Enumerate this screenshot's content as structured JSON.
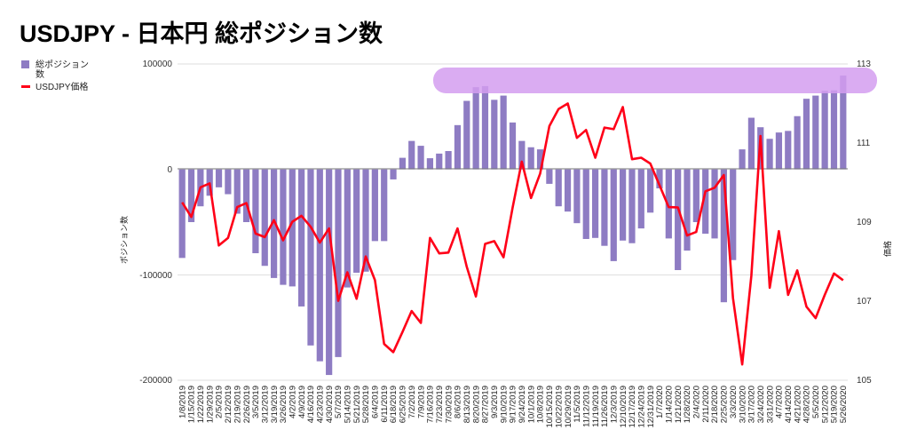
{
  "chart_data": {
    "type": "bar+line",
    "title": "USDJPY - 日本円 総ポジション数",
    "legend": {
      "placement": "top-left",
      "entries": [
        {
          "line1": "総ポジション",
          "line2": "数",
          "label": "総ポジション数",
          "color": "#8e7cc3",
          "kind": "bar"
        },
        {
          "label": "USDJPY価格",
          "color": "#ff0018",
          "kind": "line"
        }
      ]
    },
    "ylabel_left": "ポジション数",
    "ylabel_right": "価格",
    "ylim_left": [
      -200000,
      100000
    ],
    "yticks_left": [
      "100000",
      "0",
      "-100000",
      "-200000"
    ],
    "ylim_right": [
      105,
      113
    ],
    "yticks_right": [
      "113",
      "111",
      "109",
      "107",
      "105"
    ],
    "grid": true,
    "highlight_color": "#d49ef0",
    "categories": [
      "1/8/2019",
      "1/15/2019",
      "1/22/2019",
      "1/29/2019",
      "2/5/2019",
      "2/12/2019",
      "2/19/2019",
      "2/26/2019",
      "3/5/2019",
      "3/12/2019",
      "3/19/2019",
      "3/26/2019",
      "4/2/2019",
      "4/9/2019",
      "4/16/2019",
      "4/23/2019",
      "4/30/2019",
      "5/7/2019",
      "5/14/2019",
      "5/21/2019",
      "5/28/2019",
      "6/4/2019",
      "6/11/2019",
      "6/18/2019",
      "6/25/2019",
      "7/2/2019",
      "7/9/2019",
      "7/16/2019",
      "7/23/2019",
      "7/30/2019",
      "8/6/2019",
      "8/13/2019",
      "8/20/2019",
      "8/27/2019",
      "9/3/2019",
      "9/10/2019",
      "9/17/2019",
      "9/24/2019",
      "10/1/2019",
      "10/8/2019",
      "10/15/2019",
      "10/22/2019",
      "10/29/2019",
      "11/5/2019",
      "11/12/2019",
      "11/19/2019",
      "11/26/2019",
      "12/3/2019",
      "12/10/2019",
      "12/17/2019",
      "12/24/2019",
      "12/31/2019",
      "1/7/2020",
      "1/14/2020",
      "1/21/2020",
      "1/28/2020",
      "2/4/2020",
      "2/11/2020",
      "2/18/2020",
      "2/25/2020",
      "3/3/2020",
      "3/10/2020",
      "3/17/2020",
      "3/24/2020",
      "3/31/2020",
      "4/7/2020",
      "4/14/2020",
      "4/21/2020",
      "4/28/2020",
      "5/5/2020",
      "5/12/2020",
      "5/19/2020",
      "5/26/2020"
    ],
    "series": [
      {
        "name": "総ポジション数",
        "axis": "left",
        "type": "bar",
        "values": [
          -84000,
          -50000,
          -35000,
          -25000,
          -17000,
          -23500,
          -42000,
          -50000,
          -79500,
          -91500,
          -103000,
          -109500,
          -111000,
          -130000,
          -167000,
          -182000,
          -195000,
          -178000,
          -112000,
          -98000,
          -97000,
          -68000,
          -68000,
          -9500,
          11000,
          27000,
          22400,
          10600,
          15000,
          17400,
          42000,
          65000,
          78000,
          79000,
          66000,
          70000,
          44500,
          27000,
          21000,
          19000,
          -13700,
          -35000,
          -40000,
          -51000,
          -66000,
          -65000,
          -72500,
          -87000,
          -67500,
          -70000,
          -56000,
          -41000,
          -18000,
          -65500,
          -95500,
          -77000,
          -50000,
          -61000,
          -65500,
          -126000,
          -86000,
          19000,
          49000,
          40000,
          29000,
          35000,
          36500,
          50500,
          67000,
          70000,
          74500,
          75000,
          89000
        ]
      },
      {
        "name": "USDJPY価格",
        "axis": "right",
        "type": "line",
        "values": [
          109.5,
          109.13,
          109.88,
          109.98,
          108.41,
          108.6,
          109.38,
          109.48,
          108.71,
          108.62,
          109.05,
          108.54,
          109.01,
          109.16,
          108.88,
          108.48,
          108.84,
          107.01,
          107.73,
          107.06,
          108.13,
          107.53,
          105.92,
          105.71,
          106.22,
          106.75,
          106.45,
          108.6,
          108.21,
          108.23,
          108.84,
          107.87,
          107.12,
          108.45,
          108.52,
          108.11,
          109.37,
          110.53,
          109.61,
          110.23,
          111.43,
          111.86,
          112.0,
          111.13,
          111.33,
          110.63,
          111.39,
          111.35,
          111.91,
          110.59,
          110.63,
          110.48,
          109.93,
          109.38,
          109.37,
          108.66,
          108.75,
          109.78,
          109.87,
          110.19,
          107.08,
          105.4,
          107.64,
          111.18,
          107.34,
          108.77,
          107.16,
          107.78,
          106.86,
          106.57,
          107.16,
          107.7,
          107.53
        ]
      }
    ]
  }
}
